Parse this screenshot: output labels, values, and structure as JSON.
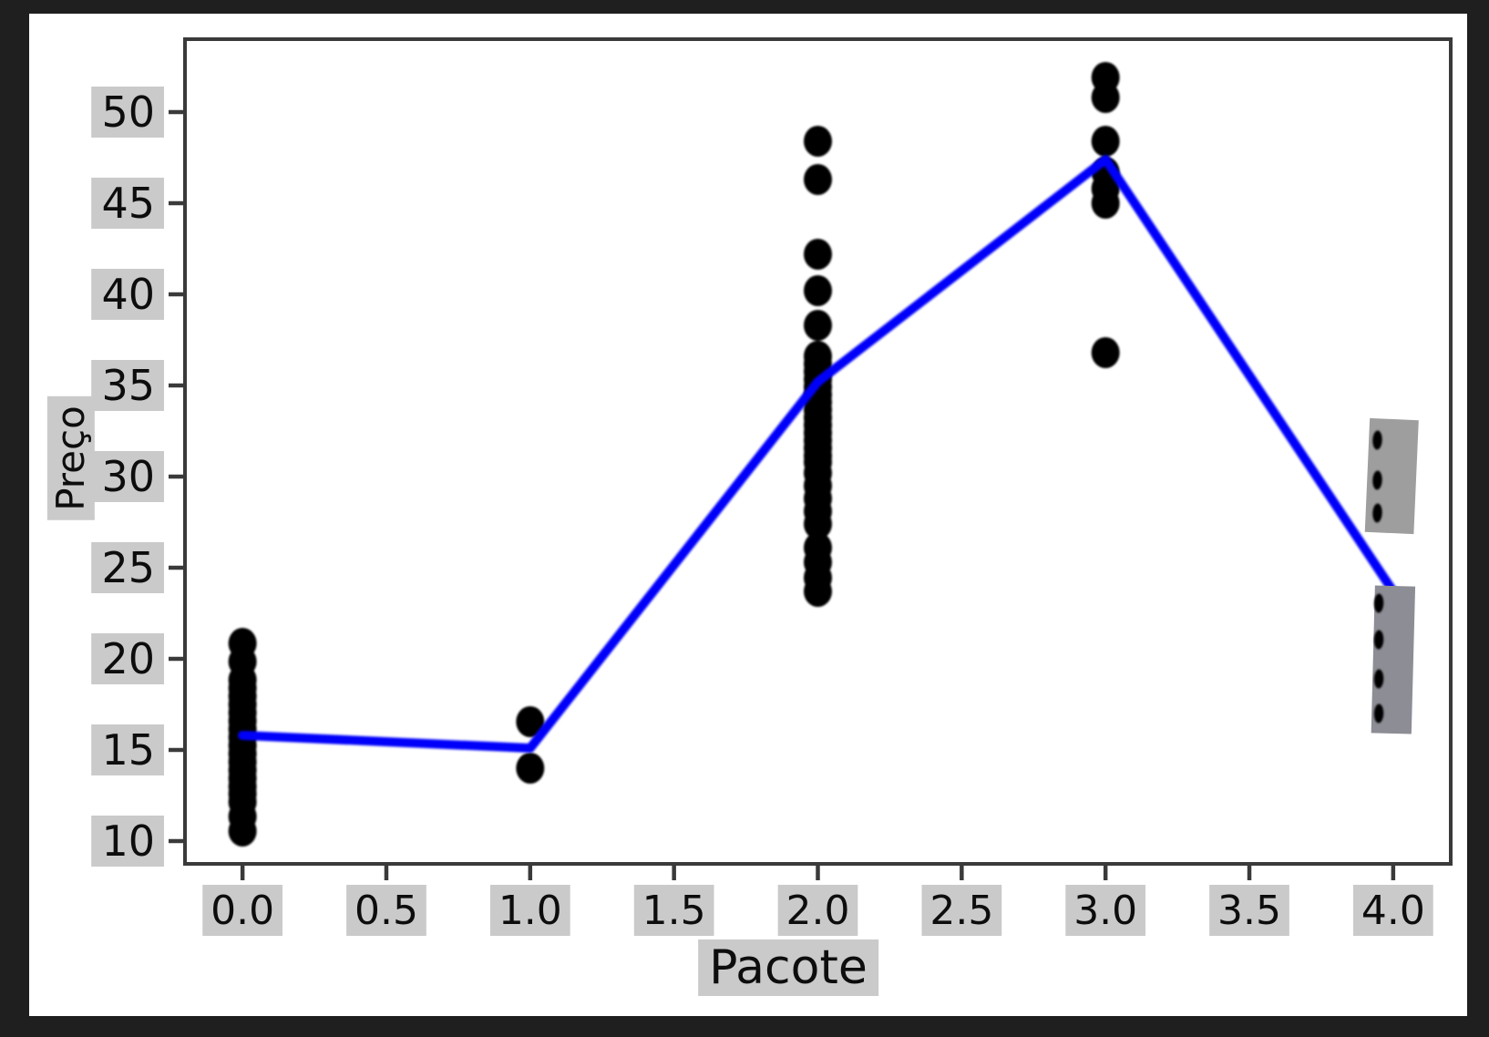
{
  "window": {
    "outer_background": "#1f1f1f",
    "figure_background": "#ffffff"
  },
  "chart_data": {
    "type": "scatter",
    "title": "",
    "xlabel": "Pacote",
    "ylabel": "Preço",
    "x_tick_labels": [
      "0.0",
      "0.5",
      "1.0",
      "1.5",
      "2.0",
      "2.5",
      "3.0",
      "3.5",
      "4.0"
    ],
    "x_tick_values": [
      0,
      0.5,
      1,
      1.5,
      2,
      2.5,
      3,
      3.5,
      4
    ],
    "y_tick_labels": [
      "10",
      "15",
      "20",
      "25",
      "30",
      "35",
      "40",
      "45",
      "50"
    ],
    "y_tick_values": [
      10,
      15,
      20,
      25,
      30,
      35,
      40,
      45,
      50
    ],
    "xlim": [
      -0.2,
      4.2
    ],
    "ylim": [
      8.75,
      54.0
    ],
    "grid": false,
    "legend": "none",
    "series": [
      {
        "name": "preco-observations",
        "type": "strip",
        "marker": "circle",
        "color": "#000000",
        "clusters": [
          {
            "x": 0,
            "y": [
              20.85,
              19.85,
              18.85,
              18.4,
              17.95,
              17.5,
              17.05,
              16.6,
              16.15,
              15.7,
              15.25,
              14.8,
              14.35,
              13.9,
              13.45,
              13.0,
              12.6,
              12.15,
              11.35,
              10.55
            ]
          },
          {
            "x": 1,
            "y": [
              16.55,
              14.0
            ]
          },
          {
            "x": 2,
            "y": [
              48.4,
              46.3,
              42.2,
              40.2,
              38.3,
              36.6,
              36.18,
              35.76,
              35.34,
              34.92,
              34.5,
              34.08,
              33.66,
              33.24,
              32.82,
              32.4,
              31.98,
              31.56,
              31.14,
              30.8,
              30.2,
              29.5,
              28.8,
              28.1,
              27.4,
              26.1,
              25.3,
              24.45,
              23.7
            ]
          },
          {
            "x": 3,
            "y": [
              51.9,
              50.8,
              48.4,
              46.7,
              45.8,
              45.0,
              36.8
            ]
          }
        ]
      },
      {
        "name": "mean-trend-line",
        "type": "line",
        "color": "#0404fa",
        "x": [
          0,
          1,
          2,
          3,
          4
        ],
        "y": [
          15.8,
          15.1,
          35.2,
          47.4,
          23.7
        ]
      }
    ],
    "overlay_boxes": [
      {
        "id": "upper",
        "color": "#9e9e9e",
        "x": [
          3.91,
          4.08
        ],
        "y": [
          26.9,
          33.15
        ],
        "tilt_deg": 2.5,
        "visible_points_x": 3.945,
        "visible_points_y": [
          32.0,
          29.8,
          28.0
        ]
      },
      {
        "id": "lower",
        "color": "#8d8d96",
        "x": [
          3.93,
          4.07
        ],
        "y": [
          15.9,
          24.0
        ],
        "tilt_deg": 1.5,
        "visible_points_x": 3.95,
        "visible_points_y": [
          23.05,
          21.05,
          18.9,
          17.0
        ]
      }
    ],
    "colors": {
      "plot_background": "#ffffff",
      "spine": "#3a3a3a",
      "tick_mark": "#3a3a3a",
      "tick_label_text": "#0d0d0d",
      "tick_label_background": "#cacaca",
      "axis_label_background": "#cacaca",
      "dot": "#000000",
      "line": "#0404fa"
    }
  }
}
